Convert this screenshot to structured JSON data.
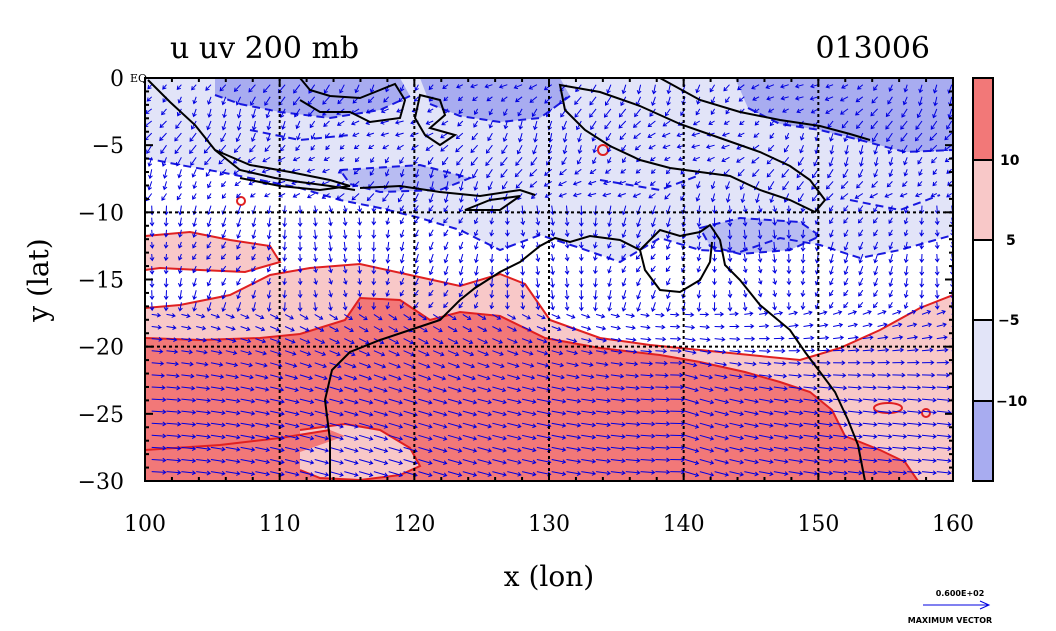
{
  "title_left": "u uv 200 mb",
  "title_right": "013006",
  "xlabel": "x (lon)",
  "ylabel": "y (lat)",
  "equator_label": "EQ",
  "x_ticks": [
    "100",
    "110",
    "120",
    "130",
    "140",
    "150",
    "160"
  ],
  "y_ticks": [
    "0",
    "−5",
    "−10",
    "−15",
    "−20",
    "−25",
    "−30"
  ],
  "colorbar_labels": [
    "10",
    "5",
    "−5",
    "−10"
  ],
  "vector_legend": {
    "value": "0.600E+02",
    "label": "MAXIMUM VECTOR"
  },
  "colors": {
    "strong_pos": "#f27878",
    "weak_pos": "#f8c8c8",
    "weak_neg": "#e2e4f8",
    "strong_neg": "#a8acf0",
    "vectors": "#0000e0",
    "coast": "#000000",
    "pos_contour": "#e02020",
    "neg_contour": "#1818e0"
  },
  "chart_data": {
    "type": "map",
    "field": "u",
    "level": "200 mb",
    "xlim": [
      100,
      160
    ],
    "ylim": [
      -30,
      0
    ],
    "grid_lon": [
      110,
      120,
      130,
      140,
      150
    ],
    "grid_lat": [
      -10,
      -20
    ],
    "colorbar_levels": [
      -10,
      -5,
      5,
      10
    ],
    "colorbar_classes": [
      "> 10",
      "5 to 10",
      "-5 to 5",
      "-10 to -5",
      "< -10"
    ]
  }
}
